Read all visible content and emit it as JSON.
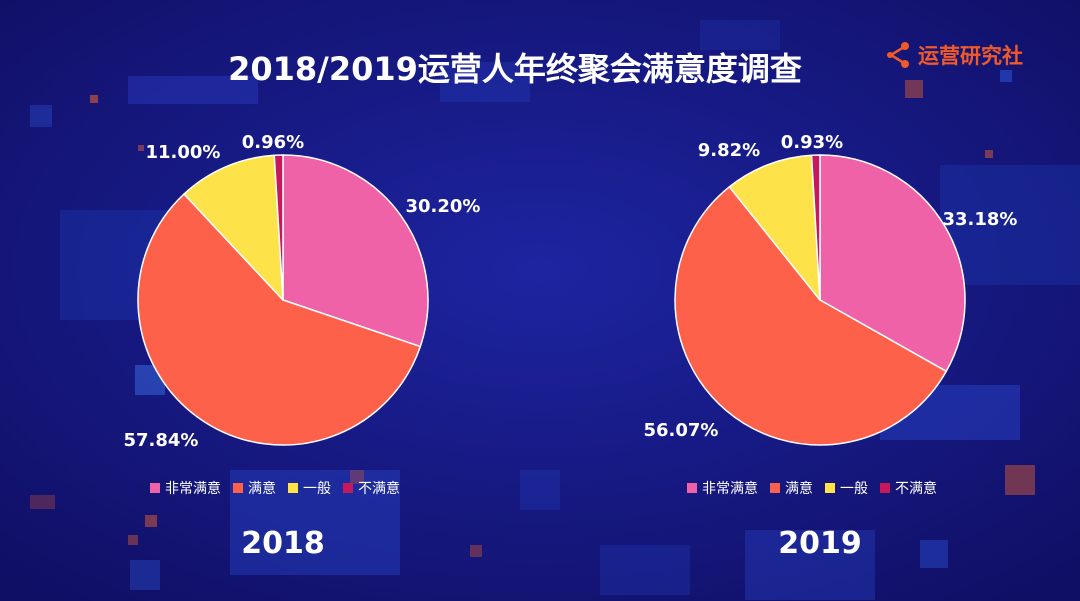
{
  "title": "2018/2019运营人年终聚会满意度调查",
  "logo": {
    "text": "运营研究社",
    "icon": "share-icon"
  },
  "colors": {
    "background": "#14137a",
    "非常满意": "#f062a8",
    "满意": "#fe6149",
    "一般": "#fde24a",
    "不满意": "#c5195c"
  },
  "chart_data": [
    {
      "type": "pie",
      "title": "2018",
      "categories": [
        "非常满意",
        "满意",
        "一般",
        "不满意"
      ],
      "values": [
        30.2,
        57.84,
        11.0,
        0.96
      ],
      "labels": [
        "30.20%",
        "57.84%",
        "11.00%",
        "0.96%"
      ],
      "legend_position": "bottom"
    },
    {
      "type": "pie",
      "title": "2019",
      "categories": [
        "非常满意",
        "满意",
        "一般",
        "不满意"
      ],
      "values": [
        33.18,
        56.07,
        9.82,
        0.93
      ],
      "labels": [
        "33.18%",
        "56.07%",
        "9.82%",
        "0.93%"
      ],
      "legend_position": "bottom"
    }
  ]
}
